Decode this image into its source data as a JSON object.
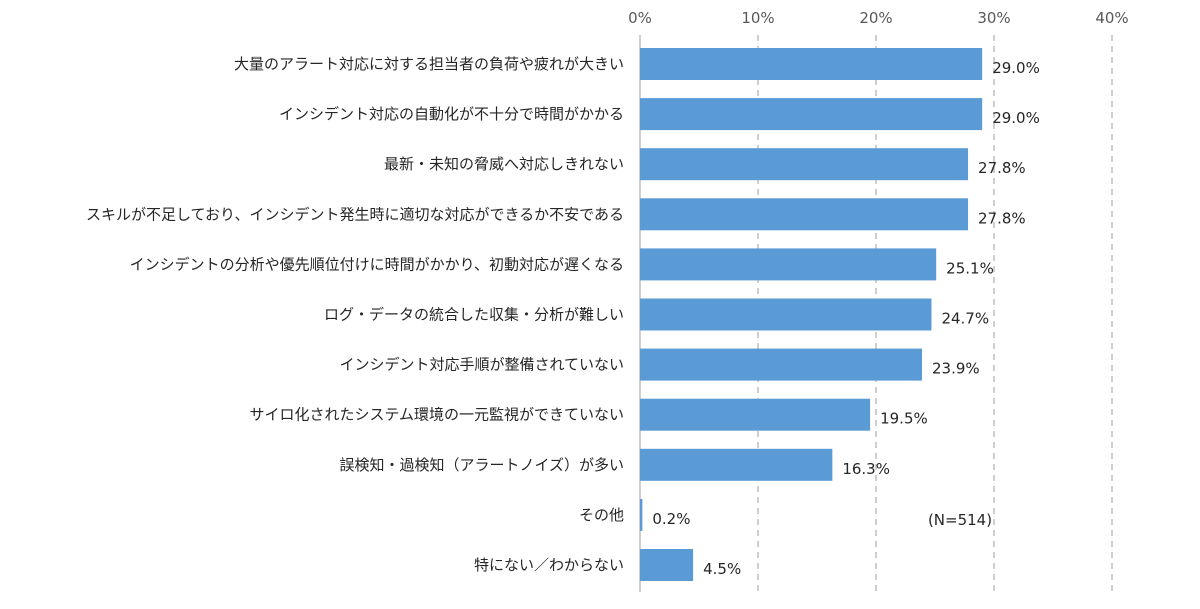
{
  "chart_data": {
    "type": "bar",
    "orientation": "horizontal",
    "categories": [
      "大量のアラート対応に対する担当者の負荷や疲れが大きい",
      "インシデント対応の自動化が不十分で時間がかかる",
      "最新・未知の脅威へ対応しきれない",
      "スキルが不足しており、インシデント発生時に適切な対応ができるか不安である",
      "インシデントの分析や優先順位付けに時間がかかり、初動対応が遅くなる",
      "ログ・データの統合した収集・分析が難しい",
      "インシデント対応手順が整備されていない",
      "サイロ化されたシステム環境の一元監視ができていない",
      "誤検知・過検知（アラートノイズ）が多い",
      "その他",
      "特にない／わからない"
    ],
    "values": [
      29.0,
      29.0,
      27.8,
      27.8,
      25.1,
      24.7,
      23.9,
      19.5,
      16.3,
      0.2,
      4.5
    ],
    "value_labels": [
      "29.0%",
      "29.0%",
      "27.8%",
      "27.8%",
      "25.1%",
      "24.7%",
      "23.9%",
      "19.5%",
      "16.3%",
      "0.2%",
      "4.5%"
    ],
    "xlim": [
      0,
      40
    ],
    "ticks": [
      0,
      10,
      20,
      30,
      40
    ],
    "tick_labels": [
      "0%",
      "10%",
      "20%",
      "30%",
      "40%"
    ],
    "axis_position": "top",
    "grid": "vertical dashed",
    "title": "",
    "xlabel": "",
    "ylabel": "",
    "annotation": "(N=514)"
  },
  "colors": {
    "bar": "#5b9bd5",
    "grid": "#bfbfbf",
    "axis": "#bfbfbf",
    "text": "#262626"
  }
}
